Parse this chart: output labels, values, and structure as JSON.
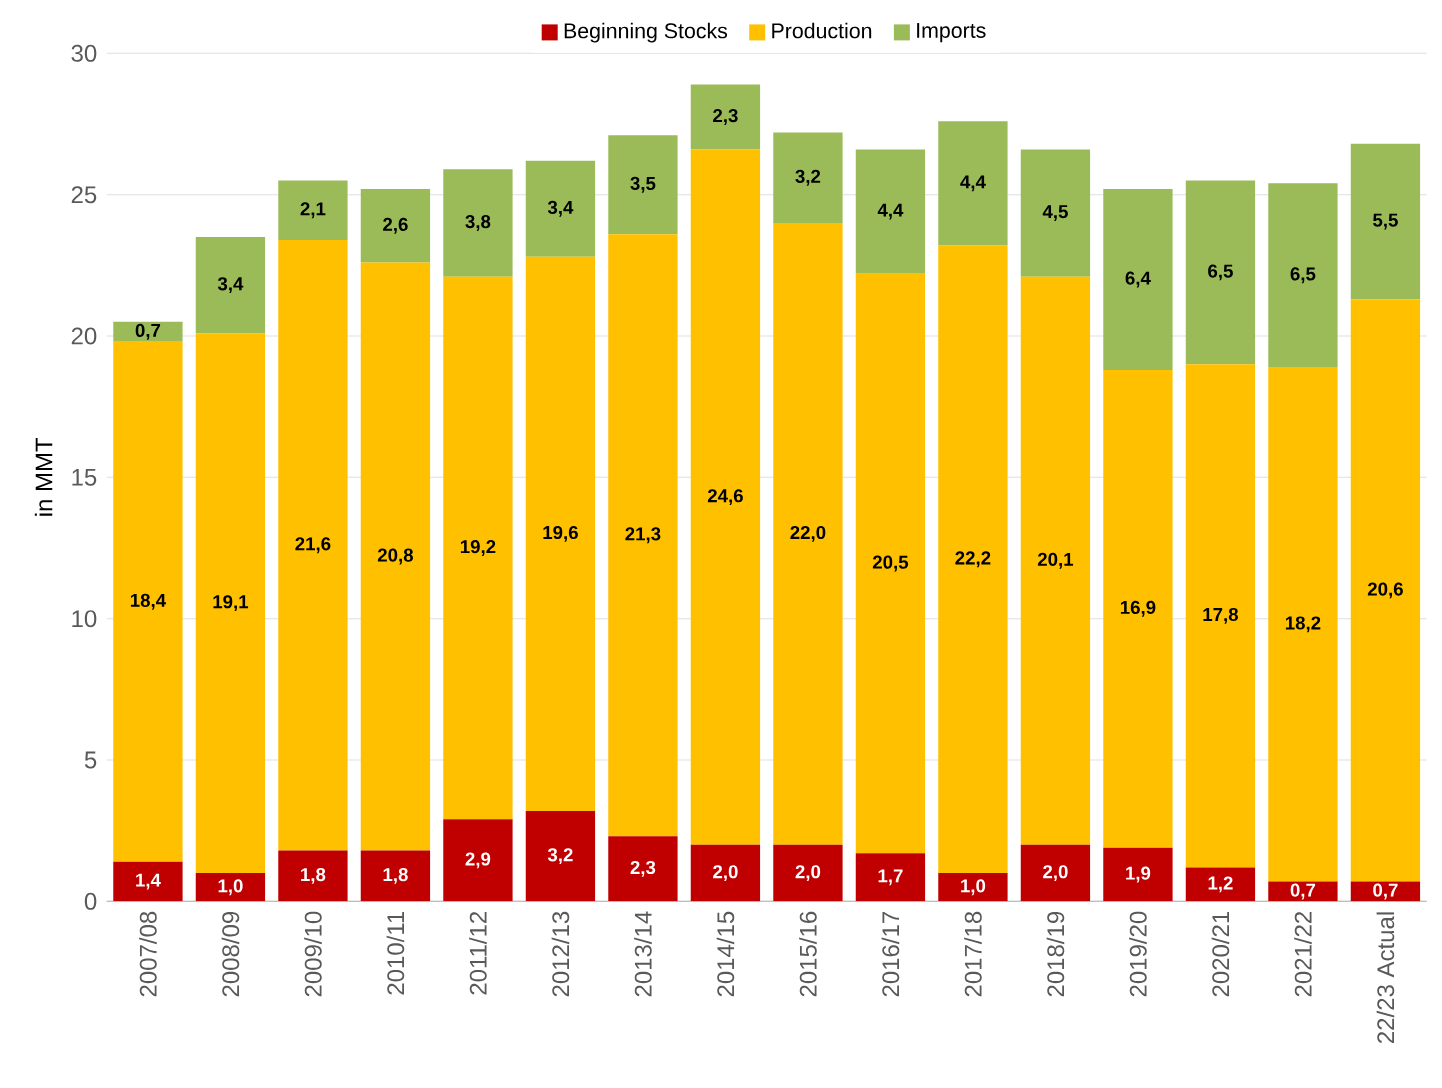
{
  "chart_data": {
    "type": "bar",
    "stacked": true,
    "ylabel": "in MMT",
    "categories": [
      "2007/08",
      "2008/09",
      "2009/10",
      "2010/11",
      "2011/12",
      "2012/13",
      "2013/14",
      "2014/15",
      "2015/16",
      "2016/17",
      "2017/18",
      "2018/19",
      "2019/20",
      "2020/21",
      "2021/22",
      "22/23 Actual"
    ],
    "series": [
      {
        "name": "Beginning Stocks",
        "color": "#c00000",
        "values": [
          1.4,
          1.0,
          1.8,
          1.8,
          2.9,
          3.2,
          2.3,
          2.0,
          2.0,
          1.7,
          1.0,
          2.0,
          1.9,
          1.2,
          0.7,
          0.7
        ],
        "value_labels": [
          "1,4",
          "1,0",
          "1,8",
          "1,8",
          "2,9",
          "3,2",
          "2,3",
          "2,0",
          "2,0",
          "1,7",
          "1,0",
          "2,0",
          "1,9",
          "1,2",
          "0,7",
          "0,7"
        ]
      },
      {
        "name": "Production",
        "color": "#ffc000",
        "values": [
          18.4,
          19.1,
          21.6,
          20.8,
          19.2,
          19.6,
          21.3,
          24.6,
          22.0,
          20.5,
          22.2,
          20.1,
          16.9,
          17.8,
          18.2,
          20.6
        ],
        "value_labels": [
          "18,4",
          "19,1",
          "21,6",
          "20,8",
          "19,2",
          "19,6",
          "21,3",
          "24,6",
          "22,0",
          "20,5",
          "22,2",
          "20,1",
          "16,9",
          "17,8",
          "18,2",
          "20,6"
        ]
      },
      {
        "name": "Imports",
        "color": "#9bbb59",
        "values": [
          0.7,
          3.4,
          2.1,
          2.6,
          3.8,
          3.4,
          3.5,
          2.3,
          3.2,
          4.4,
          4.4,
          4.5,
          6.4,
          6.5,
          6.5,
          5.5
        ],
        "value_labels": [
          "0,7",
          "3,4",
          "2,1",
          "2,6",
          "3,8",
          "3,4",
          "3,5",
          "2,3",
          "3,2",
          "4,4",
          "4,4",
          "4,5",
          "6,4",
          "6,5",
          "6,5",
          "5,5"
        ]
      }
    ],
    "ylim": [
      0,
      30
    ],
    "yticks": [
      0,
      5,
      10,
      15,
      20,
      25,
      30
    ],
    "grid": "y",
    "legend": "top"
  }
}
